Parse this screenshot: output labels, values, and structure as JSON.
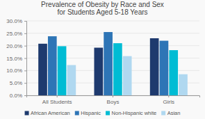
{
  "chart_data": {
    "type": "bar",
    "title": "Prevalence of Obesity by Race and Sex\nfor Students Aged 5-18 Years",
    "categories": [
      "All Students",
      "Boys",
      "Girls"
    ],
    "series": [
      {
        "name": "African American",
        "color": "#1e3a6e",
        "values": [
          20.8,
          19.2,
          23.0
        ]
      },
      {
        "name": "Hispanic",
        "color": "#2e75b6",
        "values": [
          23.8,
          25.5,
          22.0
        ]
      },
      {
        "name": "Non-Hispanic white",
        "color": "#00bcd4",
        "values": [
          19.8,
          21.0,
          18.2
        ]
      },
      {
        "name": "Asian",
        "color": "#b0d8f0",
        "values": [
          12.2,
          15.8,
          8.5
        ]
      }
    ],
    "ylim": [
      0,
      30
    ],
    "yticks": [
      {
        "value": 0,
        "label": "0.0%"
      },
      {
        "value": 5,
        "label": "5.0%"
      },
      {
        "value": 10,
        "label": "10.0%"
      },
      {
        "value": 15,
        "label": "15.0%"
      },
      {
        "value": 20,
        "label": "20.0%"
      },
      {
        "value": 25,
        "label": "25.0%"
      },
      {
        "value": 30,
        "label": "30.0%"
      }
    ],
    "grid": true,
    "legend": "bottom"
  }
}
